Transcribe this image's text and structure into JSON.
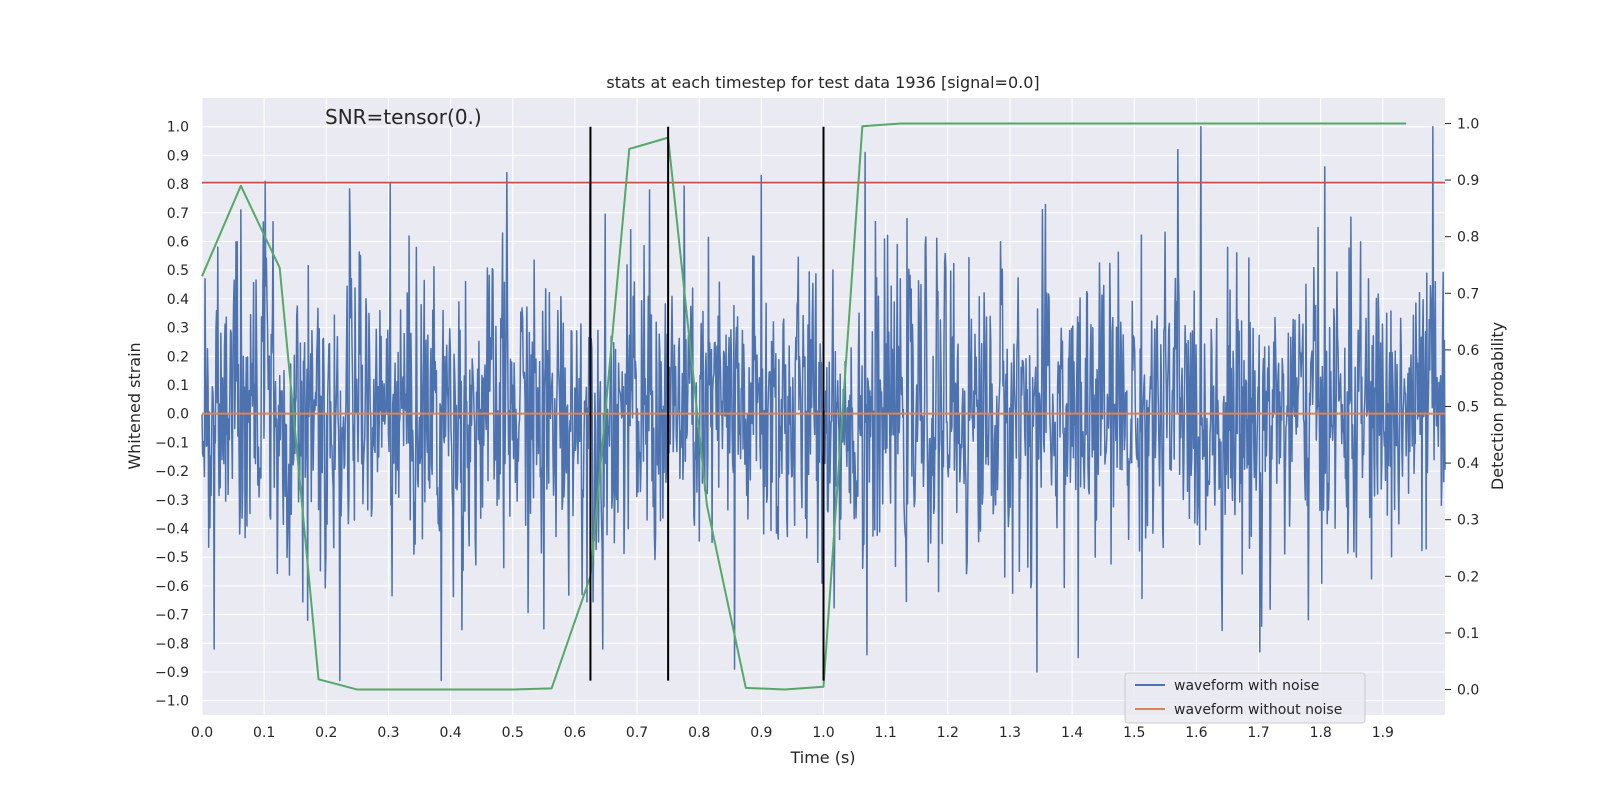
{
  "chart_data": {
    "type": "line",
    "title": "stats at each timestep for test data 1936 [signal=0.0]",
    "xlabel": "Time (s)",
    "ylabel": "Whitened strain",
    "y2label": "Detection probability",
    "xlim": [
      0.0,
      2.0
    ],
    "ylim": [
      -1.05,
      1.1
    ],
    "y2lim": [
      -0.045,
      1.045
    ],
    "x_ticks": [
      0.0,
      0.1,
      0.2,
      0.3,
      0.4,
      0.5,
      0.6,
      0.7,
      0.8,
      0.9,
      1.0,
      1.1,
      1.2,
      1.3,
      1.4,
      1.5,
      1.6,
      1.7,
      1.8,
      1.9
    ],
    "x_tick_labels": [
      "0.0",
      "0.1",
      "0.2",
      "0.3",
      "0.4",
      "0.5",
      "0.6",
      "0.7",
      "0.8",
      "0.9",
      "1.0",
      "1.1",
      "1.2",
      "1.3",
      "1.4",
      "1.5",
      "1.6",
      "1.7",
      "1.8",
      "1.9"
    ],
    "y_ticks": [
      1.0,
      0.9,
      0.8,
      0.7,
      0.6,
      0.5,
      0.4,
      0.3,
      0.2,
      0.1,
      0.0,
      -0.1,
      -0.2,
      -0.3,
      -0.4,
      -0.5,
      -0.6,
      -0.7,
      -0.8,
      -0.9,
      -1.0
    ],
    "y_tick_labels": [
      "1.0",
      "0.9",
      "0.8",
      "0.7",
      "0.6",
      "0.5",
      "0.4",
      "0.3",
      "0.2",
      "0.1",
      "0.0",
      "−0.1",
      "−0.2",
      "−0.3",
      "−0.4",
      "−0.5",
      "−0.6",
      "−0.7",
      "−0.8",
      "−0.9",
      "−1.0"
    ],
    "y2_ticks": [
      1.0,
      0.9,
      0.8,
      0.7,
      0.6,
      0.5,
      0.4,
      0.3,
      0.2,
      0.1,
      0.0
    ],
    "y2_tick_labels": [
      "1.0",
      "0.9",
      "0.8",
      "0.7",
      "0.6",
      "0.5",
      "0.4",
      "0.3",
      "0.2",
      "0.1",
      "0.0"
    ],
    "annotation": "SNR=tensor(0.)",
    "grid": true,
    "legend": {
      "position": "lower-right",
      "entries": [
        "waveform with noise",
        "waveform without noise"
      ]
    },
    "colors": {
      "noise": "#4c72b0",
      "clean": "#dd8452",
      "probability": "#55a868",
      "threshold": "#c44e52",
      "markers": "#000000",
      "plot_bg": "#eaeaf2",
      "grid": "#ffffff"
    },
    "series": [
      {
        "name": "waveform with noise",
        "axis": "left",
        "style": "noisy-trace",
        "x_range": [
          0.0,
          2.0
        ],
        "points": 2048,
        "amplitude_range": [
          -0.93,
          1.0
        ],
        "peaks": [
          [
            0.005,
            0.47
          ],
          [
            0.02,
            -0.82
          ],
          [
            0.063,
            0.71
          ],
          [
            0.102,
            0.81
          ],
          [
            0.17,
            -0.72
          ],
          [
            0.222,
            -0.93
          ],
          [
            0.303,
            0.8
          ],
          [
            0.385,
            -0.93
          ],
          [
            0.49,
            0.84
          ],
          [
            0.55,
            -0.75
          ],
          [
            0.624,
            0.8
          ],
          [
            0.645,
            -0.82
          ],
          [
            0.72,
            0.78
          ],
          [
            0.857,
            -0.89
          ],
          [
            0.9,
            0.83
          ],
          [
            1.067,
            0.91
          ],
          [
            1.07,
            -0.84
          ],
          [
            1.343,
            -0.9
          ],
          [
            1.41,
            -0.85
          ],
          [
            1.57,
            0.92
          ],
          [
            1.702,
            -0.83
          ],
          [
            1.807,
            0.86
          ],
          [
            1.98,
            1.0
          ]
        ]
      },
      {
        "name": "waveform without noise",
        "axis": "left",
        "x": [
          0.0,
          2.0
        ],
        "y": [
          0.0,
          0.0
        ]
      },
      {
        "name": "detection probability",
        "axis": "right",
        "x": [
          0.0,
          0.0625,
          0.125,
          0.1875,
          0.25,
          0.3125,
          0.375,
          0.4375,
          0.5,
          0.5625,
          0.625,
          0.6875,
          0.75,
          0.8125,
          0.875,
          0.9375,
          1.0,
          1.0625,
          1.125,
          1.1875,
          1.25,
          1.3125,
          1.375,
          1.4375,
          1.5,
          1.5625,
          1.625,
          1.6875,
          1.75,
          1.8125,
          1.875,
          1.9375
        ],
        "y": [
          0.73,
          0.89,
          0.745,
          0.018,
          0.0,
          0.0,
          0.0,
          0.0,
          0.0,
          0.002,
          0.2,
          0.955,
          0.975,
          0.325,
          0.003,
          0.0,
          0.005,
          0.995,
          1.0,
          1.0,
          1.0,
          1.0,
          1.0,
          1.0,
          1.0,
          1.0,
          1.0,
          1.0,
          1.0,
          1.0,
          1.0,
          1.0
        ]
      }
    ],
    "hlines": [
      {
        "axis": "left",
        "y": 0.805,
        "color": "threshold"
      }
    ],
    "vlines": [
      {
        "x": 0.625,
        "axis": "left",
        "y_from": -0.93,
        "y_to": 1.0
      },
      {
        "x": 0.75,
        "axis": "left",
        "y_from": -0.93,
        "y_to": 1.0
      },
      {
        "x": 1.0,
        "axis": "left",
        "y_from": -0.93,
        "y_to": 1.0
      }
    ]
  }
}
